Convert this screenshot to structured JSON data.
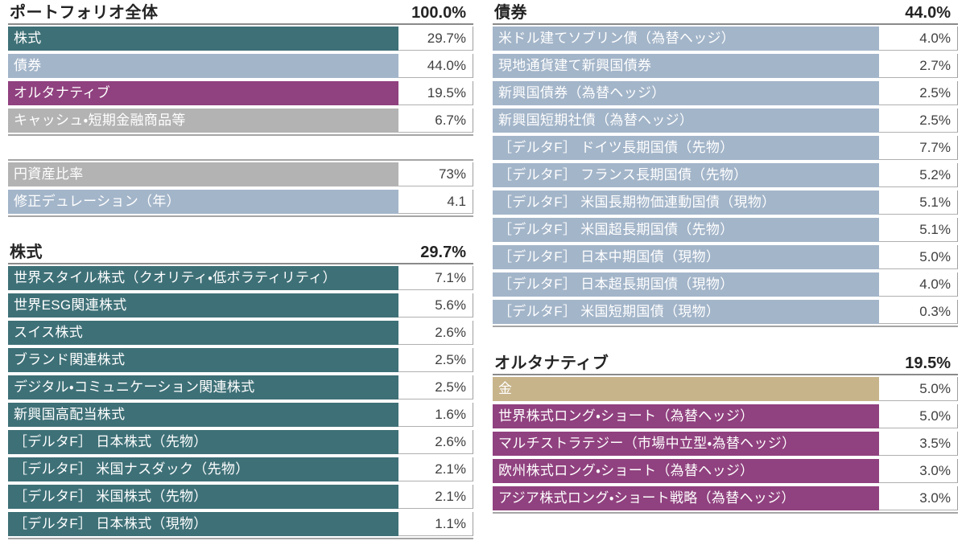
{
  "colors": {
    "equity": "#3E7077",
    "bond": "#A3B5C9",
    "alternative": "#90417F",
    "cash": "#B3B3B3",
    "gold": "#C8B48B",
    "label_text": "#FFFFFF",
    "value_text": "#3F3F3F",
    "header_text": "#242424"
  },
  "sections": {
    "portfolio": {
      "title": "ポートフォリオ全体",
      "total": "100.0%",
      "rows": [
        {
          "label": "株式",
          "value": "29.7%",
          "color_key": "equity"
        },
        {
          "label": "債券",
          "value": "44.0%",
          "color_key": "bond"
        },
        {
          "label": "オルタナティブ",
          "value": "19.5%",
          "color_key": "alternative"
        },
        {
          "label": "キャッシュ・短期金融商品等",
          "value": "6.7%",
          "color_key": "cash"
        }
      ]
    },
    "metrics": {
      "rows": [
        {
          "label": "円資産比率",
          "value": "73%",
          "color_key": "cash"
        },
        {
          "label": "修正デュレーション（年）",
          "value": "4.1",
          "color_key": "bond"
        }
      ]
    },
    "equity": {
      "title": "株式",
      "total": "29.7%",
      "rows": [
        {
          "label": "世界スタイル株式（クオリティ・低ボラティリティ）",
          "value": "7.1%",
          "color_key": "equity"
        },
        {
          "label": "世界ESG関連株式",
          "value": "5.6%",
          "color_key": "equity"
        },
        {
          "label": "スイス株式",
          "value": "2.6%",
          "color_key": "equity"
        },
        {
          "label": "ブランド関連株式",
          "value": "2.5%",
          "color_key": "equity"
        },
        {
          "label": "デジタル・コミュニケーション関連株式",
          "value": "2.5%",
          "color_key": "equity"
        },
        {
          "label": "新興国高配当株式",
          "value": "1.6%",
          "color_key": "equity"
        },
        {
          "label": "［デルタF］ 日本株式（先物）",
          "value": "2.6%",
          "color_key": "equity"
        },
        {
          "label": "［デルタF］ 米国ナスダック（先物）",
          "value": "2.1%",
          "color_key": "equity"
        },
        {
          "label": "［デルタF］ 米国株式（先物）",
          "value": "2.1%",
          "color_key": "equity"
        },
        {
          "label": "［デルタF］ 日本株式（現物）",
          "value": "1.1%",
          "color_key": "equity"
        }
      ]
    },
    "bond": {
      "title": "債券",
      "total": "44.0%",
      "rows": [
        {
          "label": "米ドル建てソブリン債（為替ヘッジ）",
          "value": "4.0%",
          "color_key": "bond"
        },
        {
          "label": "現地通貨建て新興国債券",
          "value": "2.7%",
          "color_key": "bond"
        },
        {
          "label": "新興国債券（為替ヘッジ）",
          "value": "2.5%",
          "color_key": "bond"
        },
        {
          "label": "新興国短期社債（為替ヘッジ）",
          "value": "2.5%",
          "color_key": "bond"
        },
        {
          "label": "［デルタF］ ドイツ長期国債（先物）",
          "value": "7.7%",
          "color_key": "bond"
        },
        {
          "label": "［デルタF］ フランス長期国債（先物）",
          "value": "5.2%",
          "color_key": "bond"
        },
        {
          "label": "［デルタF］ 米国長期物価連動国債（現物）",
          "value": "5.1%",
          "color_key": "bond"
        },
        {
          "label": "［デルタF］ 米国超長期国債（先物）",
          "value": "5.1%",
          "color_key": "bond"
        },
        {
          "label": "［デルタF］ 日本中期国債（現物）",
          "value": "5.0%",
          "color_key": "bond"
        },
        {
          "label": "［デルタF］ 日本超長期国債（現物）",
          "value": "4.0%",
          "color_key": "bond"
        },
        {
          "label": "［デルタF］ 米国短期国債（現物）",
          "value": "0.3%",
          "color_key": "bond"
        }
      ]
    },
    "alternative": {
      "title": "オルタナティブ",
      "total": "19.5%",
      "rows": [
        {
          "label": "金",
          "value": "5.0%",
          "color_key": "gold"
        },
        {
          "label": "世界株式ロング・ショート（為替ヘッジ）",
          "value": "5.0%",
          "color_key": "alternative"
        },
        {
          "label": "マルチストラテジー（市場中立型・為替ヘッジ）",
          "value": "3.5%",
          "color_key": "alternative"
        },
        {
          "label": "欧州株式ロング・ショート（為替ヘッジ）",
          "value": "3.0%",
          "color_key": "alternative"
        },
        {
          "label": "アジア株式ロング・ショート戦略（為替ヘッジ）",
          "value": "3.0%",
          "color_key": "alternative"
        }
      ]
    }
  }
}
